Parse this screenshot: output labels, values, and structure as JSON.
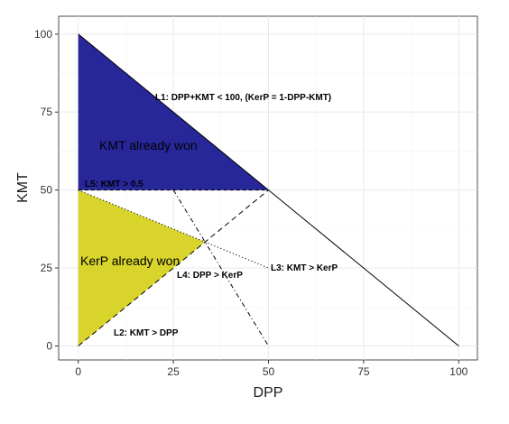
{
  "chart_data": {
    "type": "area",
    "title": "",
    "xlabel": "DPP",
    "ylabel": "KMT",
    "xlim": [
      -5,
      105
    ],
    "ylim": [
      -5,
      105
    ],
    "x_ticks": [
      "0",
      "25",
      "50",
      "75",
      "100"
    ],
    "y_ticks": [
      "0",
      "25",
      "50",
      "75",
      "100"
    ],
    "grid": true,
    "regions": [
      {
        "label": "KMT already won",
        "color": "#27279a",
        "vertices": [
          [
            0,
            100
          ],
          [
            50,
            50
          ],
          [
            0,
            50
          ]
        ]
      },
      {
        "label": "KerP already won",
        "color": "#d8d42c",
        "vertices": [
          [
            0,
            0
          ],
          [
            33.33,
            33.33
          ],
          [
            0,
            50
          ]
        ]
      }
    ],
    "lines": [
      {
        "label": "L1: DPP+KMT < 100, (KerP = 1-DPP-KMT)",
        "style": "solid",
        "points": [
          [
            0,
            100
          ],
          [
            100,
            0
          ]
        ]
      },
      {
        "label": "L2: KMT > DPP",
        "style": "longdash",
        "points": [
          [
            0,
            0
          ],
          [
            50,
            50
          ]
        ]
      },
      {
        "label": "L3: KMT > KerP",
        "style": "dotted",
        "points": [
          [
            0,
            50
          ],
          [
            50,
            25
          ]
        ]
      },
      {
        "label": "L4: DPP > KerP",
        "style": "dotdash",
        "points": [
          [
            25,
            50
          ],
          [
            50,
            0
          ]
        ]
      },
      {
        "label": "L5: KMT > 0.5",
        "style": "dashed",
        "points": [
          [
            0,
            50
          ],
          [
            50,
            50
          ]
        ]
      }
    ]
  }
}
